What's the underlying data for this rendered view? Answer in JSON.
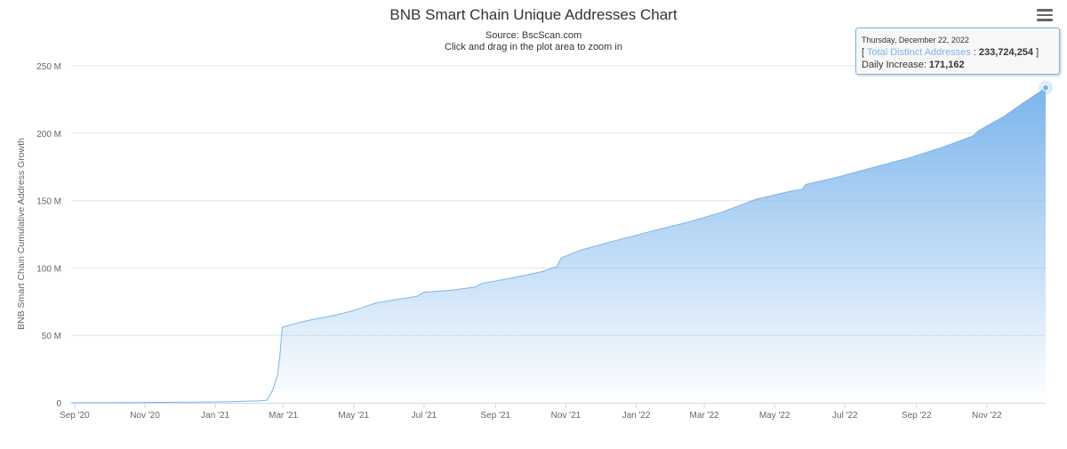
{
  "chart_data": {
    "type": "area",
    "title": "BNB Smart Chain Unique Addresses Chart",
    "subtitle_source": "Source: BscScan.com",
    "subtitle_hint": "Click and drag in the plot area to zoom in",
    "ylabel": "BNB Smart Chain Cumulative Address Growth",
    "ylim": [
      0,
      250000000
    ],
    "yticks": [
      {
        "value": 0,
        "label": "0"
      },
      {
        "value": 50000000,
        "label": "50 M"
      },
      {
        "value": 100000000,
        "label": "100 M"
      },
      {
        "value": 150000000,
        "label": "150 M"
      },
      {
        "value": 200000000,
        "label": "200 M"
      },
      {
        "value": 250000000,
        "label": "250 M"
      }
    ],
    "xlim": [
      "2020-08-29",
      "2022-12-22"
    ],
    "xticks": [
      {
        "date": "2020-09-01",
        "label": "Sep '20"
      },
      {
        "date": "2020-11-01",
        "label": "Nov '20"
      },
      {
        "date": "2021-01-01",
        "label": "Jan '21"
      },
      {
        "date": "2021-03-01",
        "label": "Mar '21"
      },
      {
        "date": "2021-05-01",
        "label": "May '21"
      },
      {
        "date": "2021-07-01",
        "label": "Jul '21"
      },
      {
        "date": "2021-09-01",
        "label": "Sep '21"
      },
      {
        "date": "2021-11-01",
        "label": "Nov '21"
      },
      {
        "date": "2022-01-01",
        "label": "Jan '22"
      },
      {
        "date": "2022-03-01",
        "label": "Mar '22"
      },
      {
        "date": "2022-05-01",
        "label": "May '22"
      },
      {
        "date": "2022-07-01",
        "label": "Jul '22"
      },
      {
        "date": "2022-09-01",
        "label": "Sep '22"
      },
      {
        "date": "2022-11-01",
        "label": "Nov '22"
      }
    ],
    "series": [
      {
        "name": "Total Distinct Addresses",
        "color": "#7cb5ec",
        "points": [
          [
            "2020-08-29",
            0
          ],
          [
            "2020-09-15",
            50000
          ],
          [
            "2020-10-15",
            150000
          ],
          [
            "2020-11-15",
            300000
          ],
          [
            "2020-12-15",
            500000
          ],
          [
            "2021-01-15",
            800000
          ],
          [
            "2021-02-10",
            1500000
          ],
          [
            "2021-02-15",
            2000000
          ],
          [
            "2021-02-20",
            10000000
          ],
          [
            "2021-02-24",
            21000000
          ],
          [
            "2021-02-26",
            35000000
          ],
          [
            "2021-02-28",
            56000000
          ],
          [
            "2021-03-10",
            58500000
          ],
          [
            "2021-03-25",
            61500000
          ],
          [
            "2021-04-15",
            65000000
          ],
          [
            "2021-05-01",
            68500000
          ],
          [
            "2021-05-20",
            74000000
          ],
          [
            "2021-06-10",
            77000000
          ],
          [
            "2021-06-25",
            79000000
          ],
          [
            "2021-07-01",
            82000000
          ],
          [
            "2021-07-25",
            83500000
          ],
          [
            "2021-08-15",
            86000000
          ],
          [
            "2021-08-20",
            88500000
          ],
          [
            "2021-09-15",
            92500000
          ],
          [
            "2021-10-10",
            97000000
          ],
          [
            "2021-10-24",
            101000000
          ],
          [
            "2021-10-28",
            107500000
          ],
          [
            "2021-11-15",
            113500000
          ],
          [
            "2021-12-15",
            120500000
          ],
          [
            "2022-01-15",
            127500000
          ],
          [
            "2022-02-15",
            134000000
          ],
          [
            "2022-03-15",
            141000000
          ],
          [
            "2022-04-15",
            151000000
          ],
          [
            "2022-05-15",
            157000000
          ],
          [
            "2022-05-25",
            158500000
          ],
          [
            "2022-05-28",
            162000000
          ],
          [
            "2022-06-25",
            167500000
          ],
          [
            "2022-07-25",
            174500000
          ],
          [
            "2022-08-25",
            181500000
          ],
          [
            "2022-09-25",
            190000000
          ],
          [
            "2022-10-20",
            198000000
          ],
          [
            "2022-10-25",
            202000000
          ],
          [
            "2022-11-15",
            212000000
          ],
          [
            "2022-12-01",
            221500000
          ],
          [
            "2022-12-15",
            229500000
          ],
          [
            "2022-12-22",
            233724254
          ]
        ]
      }
    ],
    "grid": true,
    "legend": "none"
  },
  "tooltip": {
    "date": "Thursday, December 22, 2022",
    "open_bracket": "[ ",
    "series_name": "Total Distinct Addresses",
    "separator": " : ",
    "total": "233,724,254",
    "close_bracket": " ]",
    "increase_label": "Daily Increase: ",
    "increase": "171,162"
  }
}
